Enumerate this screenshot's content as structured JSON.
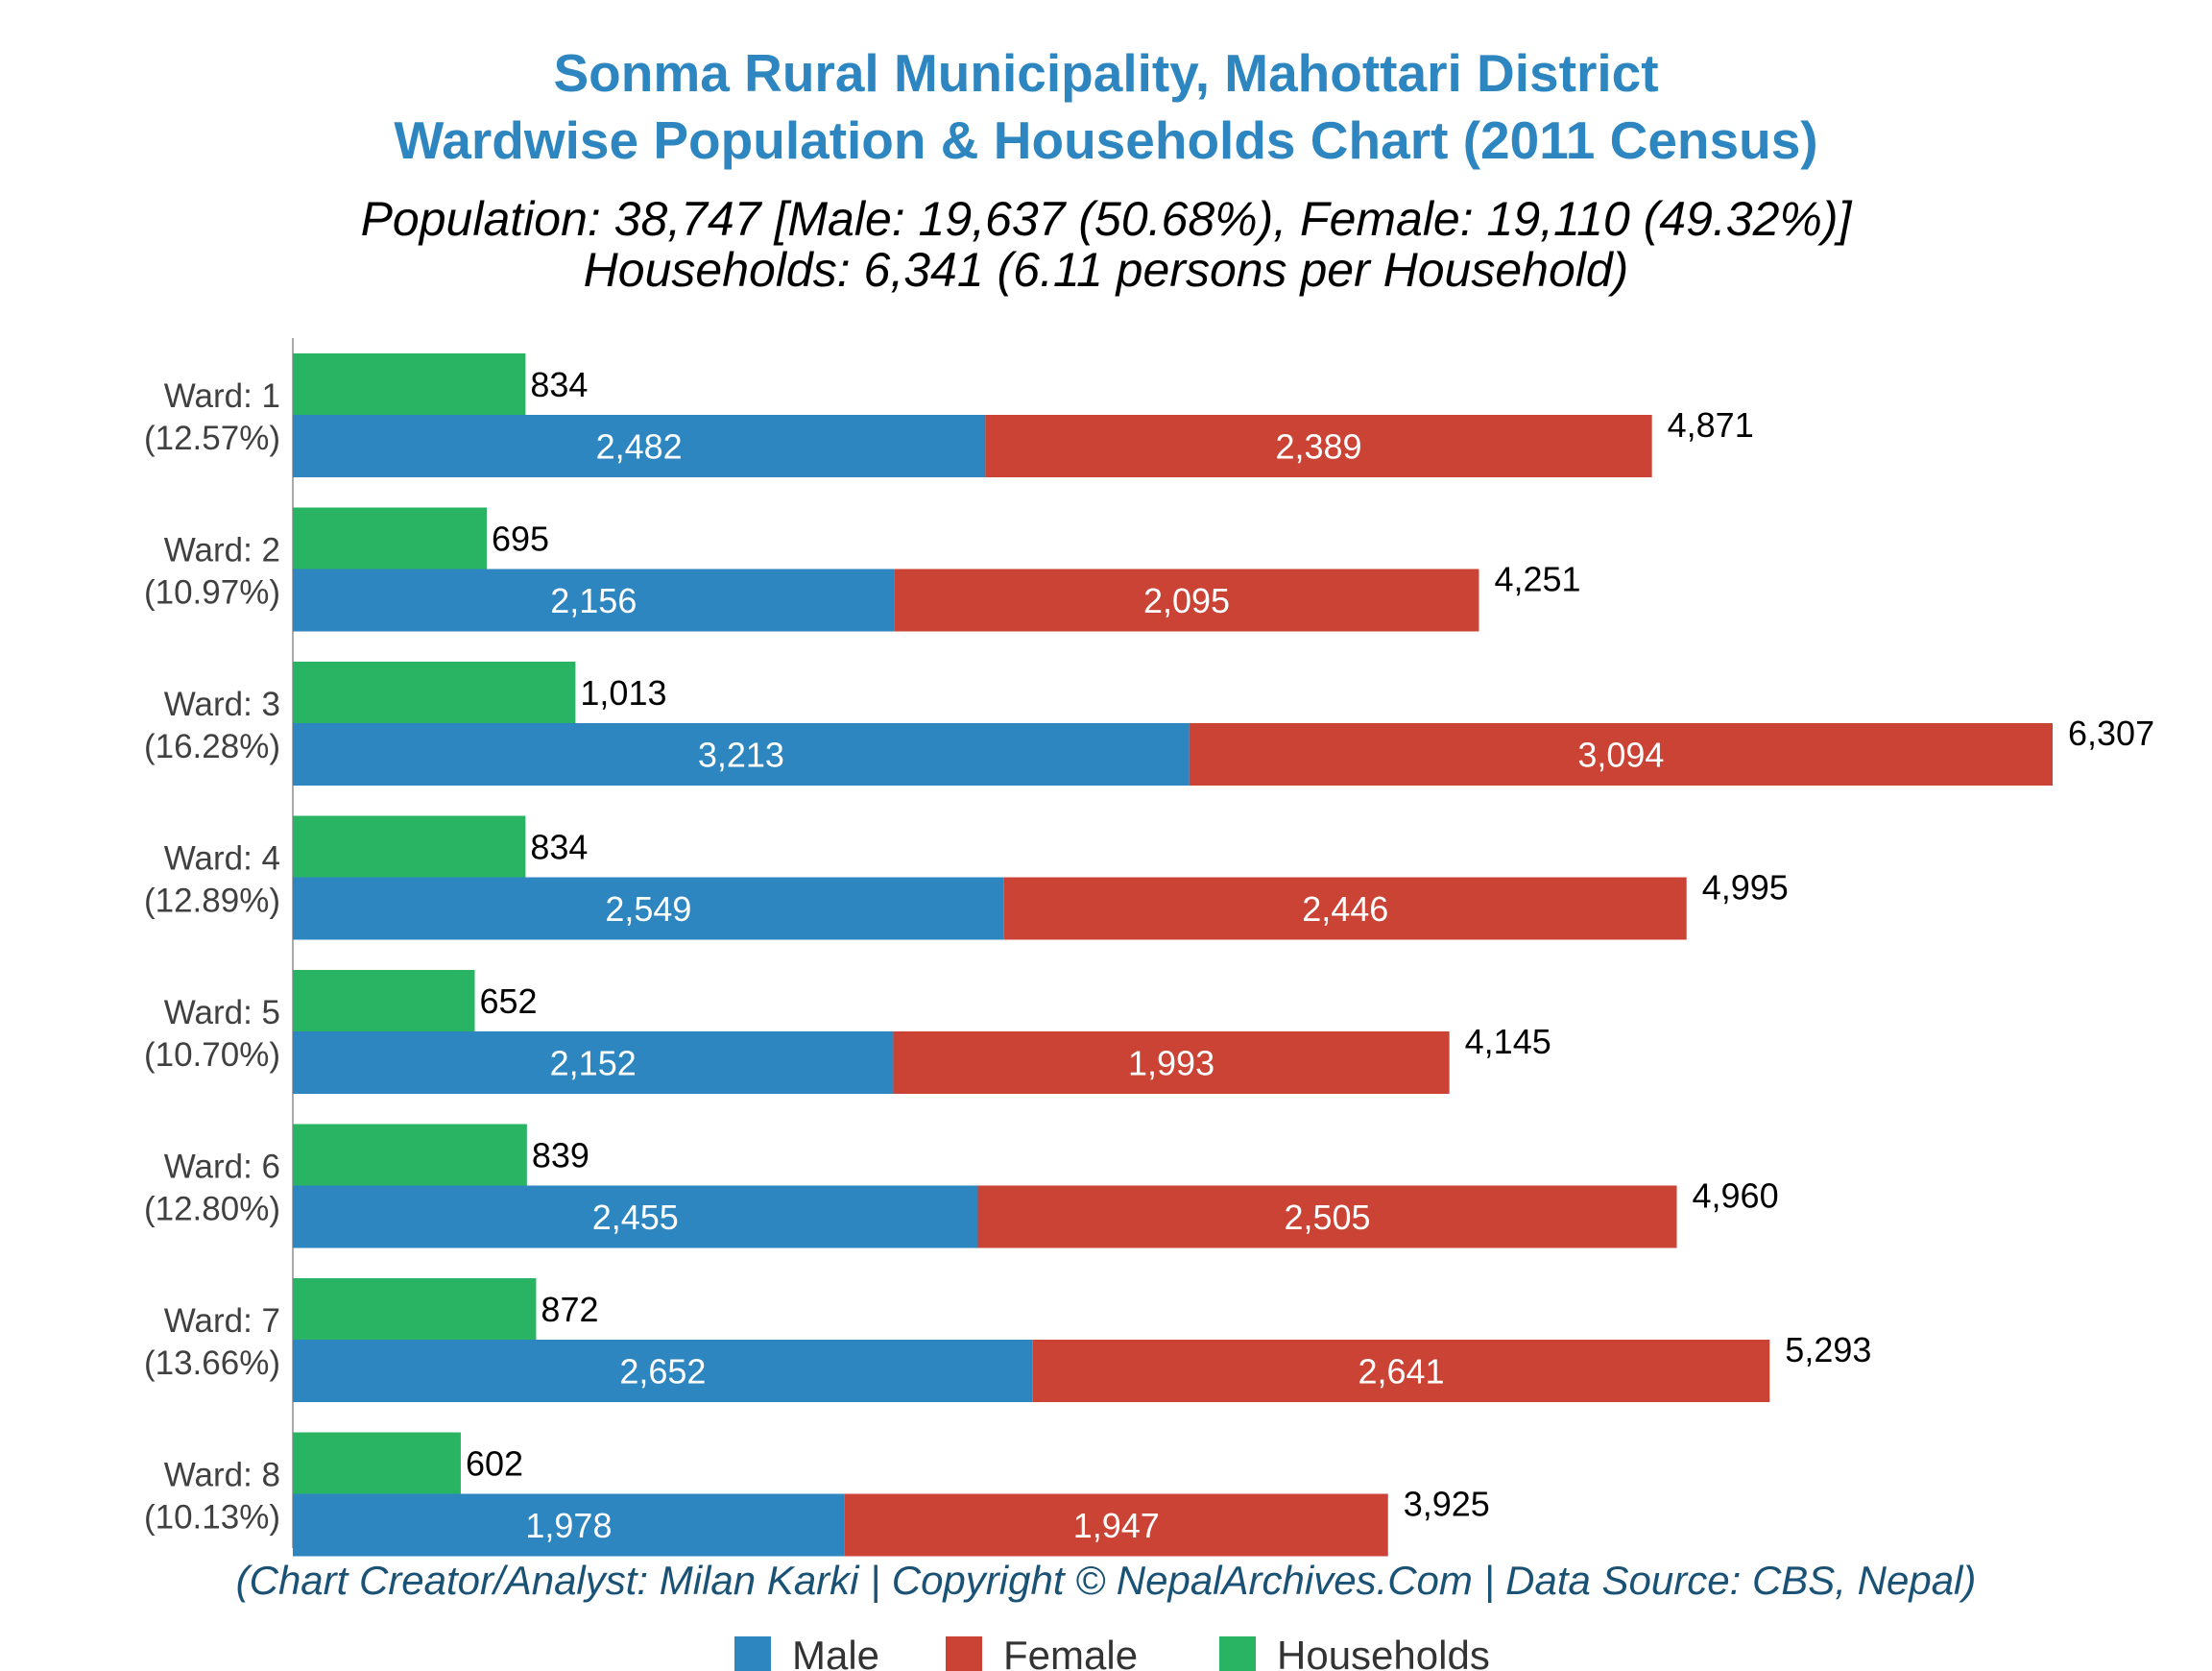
{
  "chart_data": {
    "type": "bar",
    "orientation": "horizontal",
    "title": "Sonma Rural Municipality, Mahottari District",
    "title_line2": "Wardwise Population & Households Chart (2011 Census)",
    "subtitle": "Population: 38,747 [Male: 19,637 (50.68%), Female: 19,110 (49.32%)]",
    "subtitle_line2": "Households: 6,341 (6.11 persons per Household)",
    "credit": "(Chart Creator/Analyst: Milan Karki | Copyright © NepalArchives.Com | Data Source: CBS, Nepal)",
    "categories": [
      "Ward: 1",
      "Ward: 2",
      "Ward: 3",
      "Ward: 4",
      "Ward: 5",
      "Ward: 6",
      "Ward: 7",
      "Ward: 8"
    ],
    "category_shares": [
      "(12.57%)",
      "(10.97%)",
      "(16.28%)",
      "(12.89%)",
      "(10.70%)",
      "(12.80%)",
      "(13.66%)",
      "(10.13%)"
    ],
    "series": [
      {
        "name": "Male",
        "color": "#2e86c1",
        "values": [
          2482,
          2156,
          3213,
          2549,
          2152,
          2455,
          2652,
          1978
        ],
        "labels": [
          "2,482",
          "2,156",
          "3,213",
          "2,549",
          "2,152",
          "2,455",
          "2,652",
          "1,978"
        ]
      },
      {
        "name": "Female",
        "color": "#cb4335",
        "values": [
          2389,
          2095,
          3094,
          2446,
          1993,
          2505,
          2641,
          1947
        ],
        "labels": [
          "2,389",
          "2,095",
          "3,094",
          "2,446",
          "1,993",
          "2,505",
          "2,641",
          "1,947"
        ]
      },
      {
        "name": "Households",
        "color": "#28b463",
        "values": [
          834,
          695,
          1013,
          834,
          652,
          839,
          872,
          602
        ],
        "labels": [
          "834",
          "695",
          "1,013",
          "834",
          "652",
          "839",
          "872",
          "602"
        ]
      }
    ],
    "totals": [
      4871,
      4251,
      6307,
      4995,
      4145,
      4960,
      5293,
      3925
    ],
    "total_labels": [
      "4,871",
      "4,251",
      "6,307",
      "4,995",
      "4,145",
      "4,960",
      "5,293",
      "3,925"
    ],
    "xlim": [
      0,
      6500
    ],
    "stacked": [
      "Male",
      "Female"
    ],
    "grid": false,
    "legend": "bottom-center",
    "colors": {
      "title": "#2e86c1",
      "subtitle": "#000000",
      "credit": "#1a5276",
      "category": "#404040",
      "axis": "#aaaaaa"
    }
  }
}
